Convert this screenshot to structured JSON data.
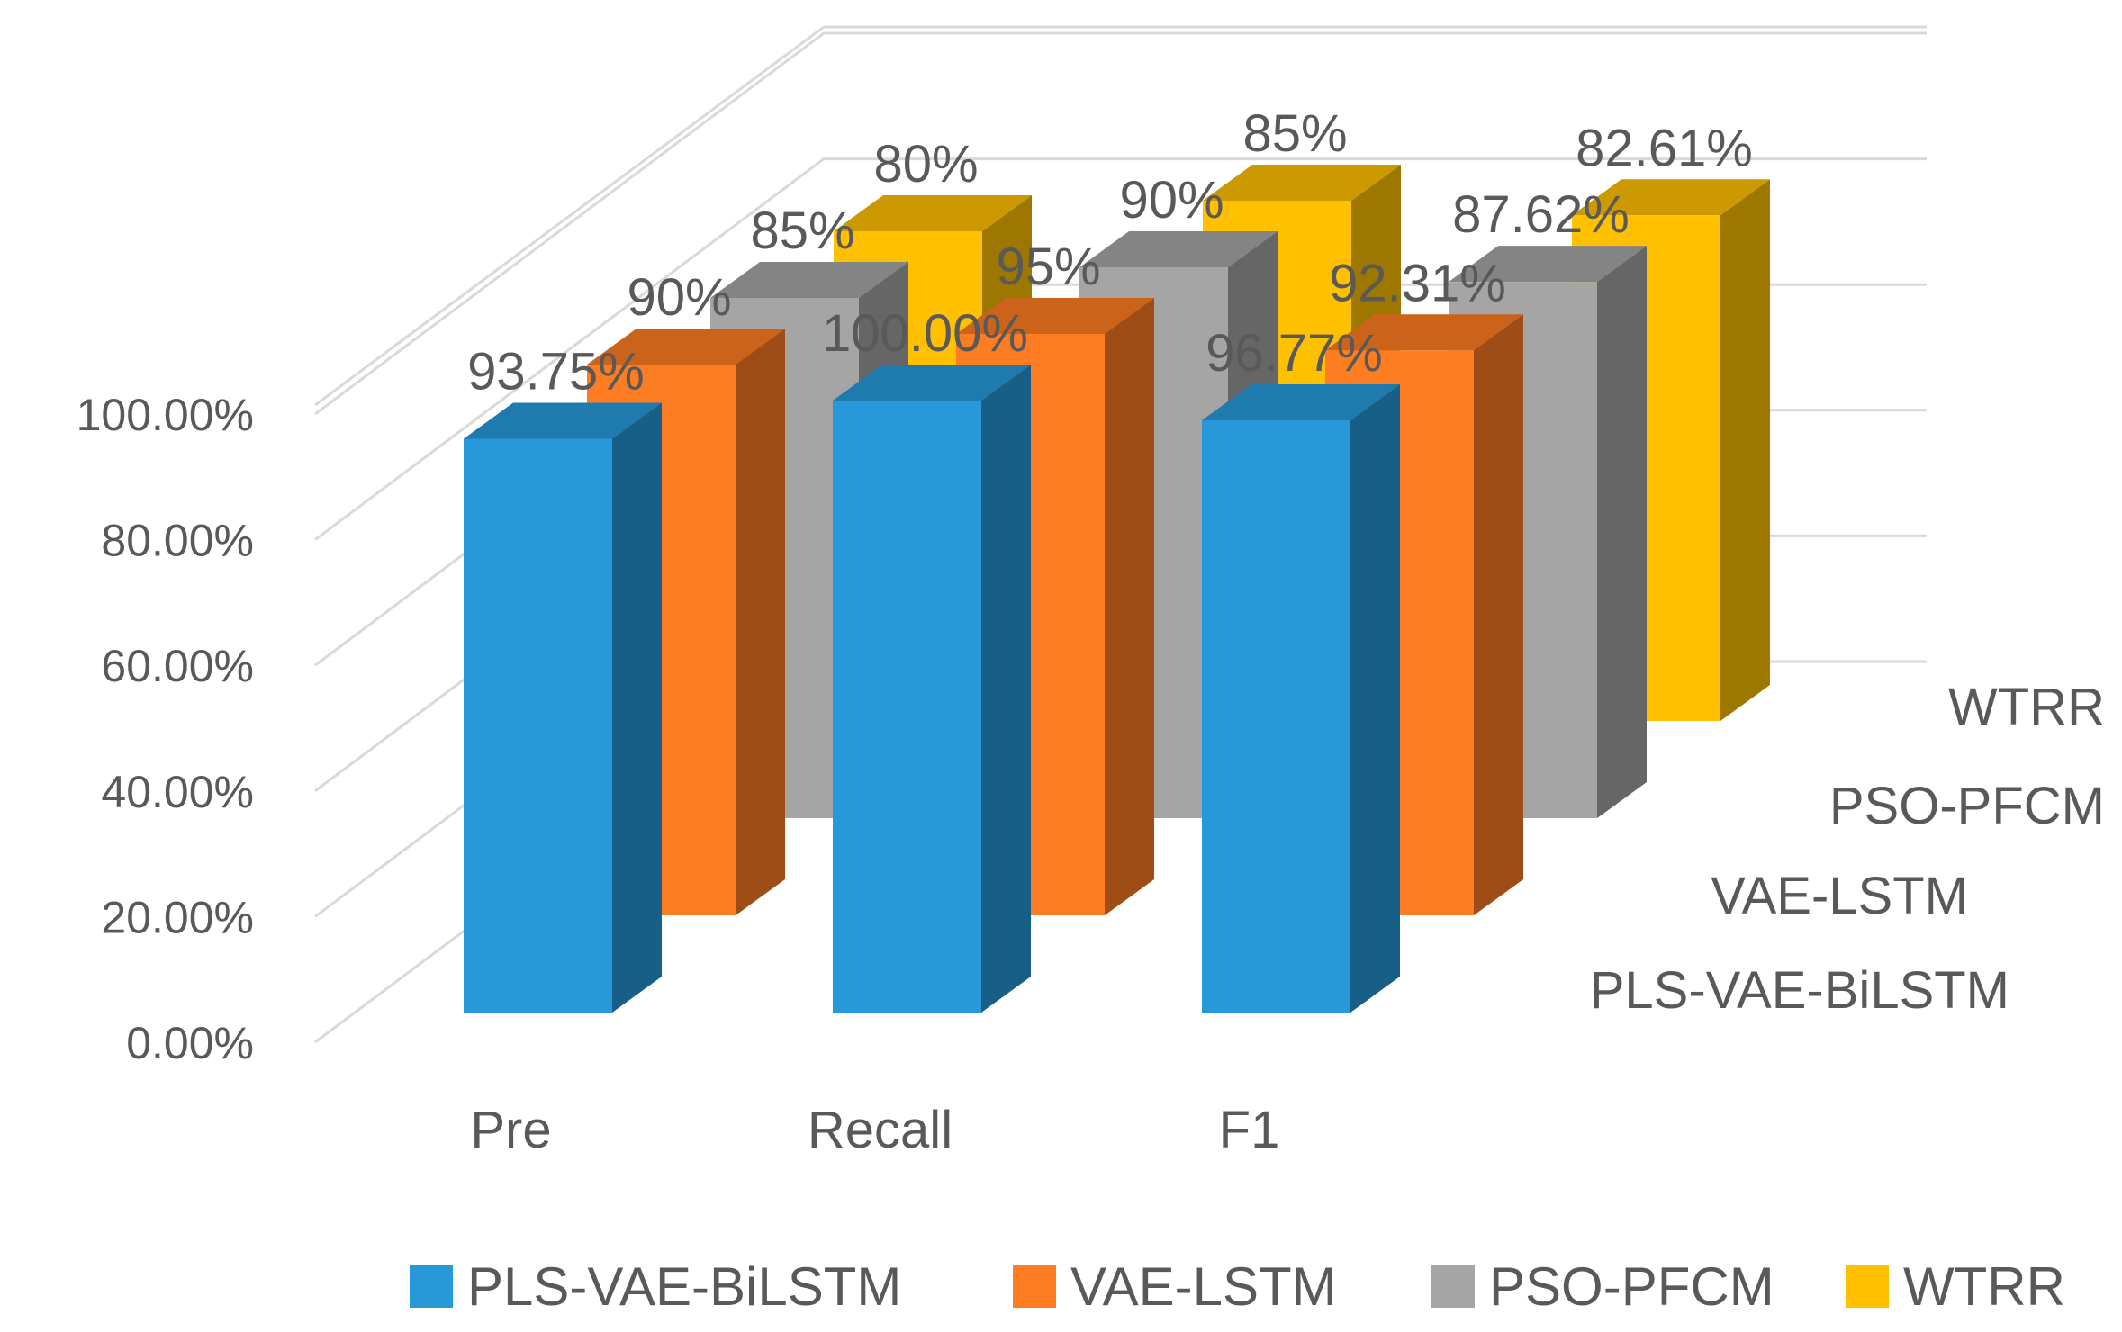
{
  "chart_data": {
    "type": "bar",
    "subtype": "3d-column",
    "title": "",
    "xlabel": "",
    "ylabel": "",
    "ylim": [
      0,
      100
    ],
    "y_ticks": [
      "0.00%",
      "20.00%",
      "40.00%",
      "60.00%",
      "80.00%",
      "100.00%"
    ],
    "categories": [
      "Pre",
      "Recall",
      "F1"
    ],
    "series": [
      {
        "name": "PLS-VAE-BiLSTM",
        "color": "#2799d9",
        "values": [
          93.75,
          100.0,
          96.77
        ],
        "labels": [
          "93.75%",
          "100.00%",
          "96.77%"
        ]
      },
      {
        "name": "VAE-LSTM",
        "color": "#fe7c22",
        "values": [
          90,
          95,
          92.31
        ],
        "labels": [
          "90%",
          "95%",
          "92.31%"
        ]
      },
      {
        "name": "PSO-PFCM",
        "color": "#a5a5a5",
        "values": [
          85,
          90,
          87.62
        ],
        "labels": [
          "85%",
          "90%",
          "87.62%"
        ]
      },
      {
        "name": "WTRR",
        "color": "#ffc000",
        "values": [
          80,
          85,
          82.61
        ],
        "labels": [
          "80%",
          "85%",
          "82.61%"
        ]
      }
    ],
    "grid": true,
    "legend": "bottom"
  }
}
